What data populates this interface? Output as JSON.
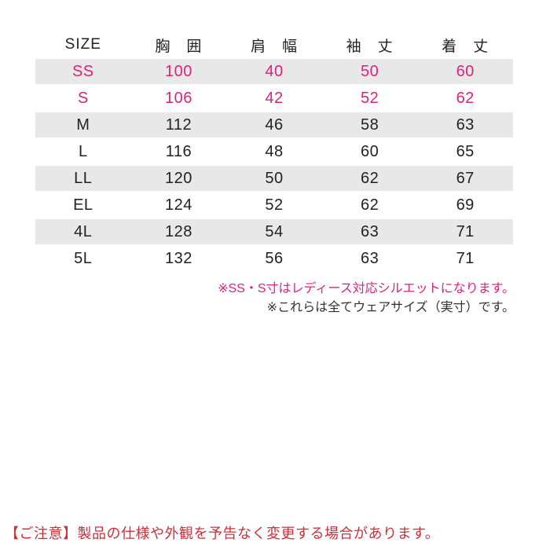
{
  "colors": {
    "accent_pink": "#d9237d",
    "caution_red": "#cb3039",
    "stripe_gray": "#e8e8e8",
    "note_dark": "#333333",
    "text_dark": "#222222"
  },
  "chart_data": {
    "type": "table",
    "title": "",
    "columns": [
      "SIZE",
      "胸　囲",
      "肩　幅",
      "袖　丈",
      "着　丈"
    ],
    "rows": [
      {
        "cells": [
          "SS",
          "100",
          "40",
          "50",
          "60"
        ],
        "ladies": true
      },
      {
        "cells": [
          "S",
          "106",
          "42",
          "52",
          "62"
        ],
        "ladies": true
      },
      {
        "cells": [
          "M",
          "112",
          "46",
          "58",
          "63"
        ],
        "ladies": false
      },
      {
        "cells": [
          "L",
          "116",
          "48",
          "60",
          "65"
        ],
        "ladies": false
      },
      {
        "cells": [
          "LL",
          "120",
          "50",
          "62",
          "67"
        ],
        "ladies": false
      },
      {
        "cells": [
          "EL",
          "124",
          "52",
          "62",
          "69"
        ],
        "ladies": false
      },
      {
        "cells": [
          "4L",
          "128",
          "54",
          "63",
          "71"
        ],
        "ladies": false
      },
      {
        "cells": [
          "5L",
          "132",
          "56",
          "63",
          "71"
        ],
        "ladies": false
      }
    ],
    "layout_hints": {
      "striped_rows": "every other row starting with first (SS)",
      "highlight_meaning": "pink rows are ladies-fit sizes"
    }
  },
  "notes": [
    {
      "text": "※SS・S寸はレディース対応シルエットになります。",
      "style": "pink"
    },
    {
      "text": "※これらは全てウェアサイズ（実寸）です。",
      "style": "dark"
    }
  ],
  "caution": {
    "label": "【ご注意】",
    "text": "製品の仕様や外観を予告なく変更する場合があります。"
  }
}
